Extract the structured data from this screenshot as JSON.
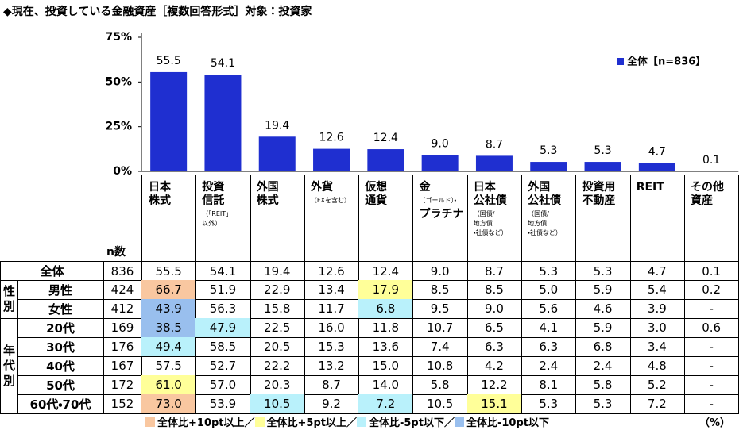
{
  "chart_data": {
    "type": "bar",
    "title": "◆現在、投資している金融資産［複数回答形式］対象：投資家",
    "categories": [
      "日本\n株式",
      "投資\n信託",
      "外国\n株式",
      "外貨",
      "仮想\n通貨",
      "金",
      "日本\n公社債",
      "外国\n公社債",
      "投資用\n不動産",
      "REIT",
      "その他\n資産"
    ],
    "category_notes": [
      null,
      "（「REIT」\n以外）",
      null,
      "（FXを含む）",
      null,
      "（ゴールド）・",
      "（国債/\n地方債\n・社債など）",
      "（国債/\n地方債\n・社債など）",
      null,
      null,
      null
    ],
    "category_tails": [
      null,
      null,
      null,
      null,
      null,
      "プラチナ",
      null,
      null,
      null,
      null,
      null
    ],
    "series": [
      {
        "name": "全体【n=836】",
        "color": "#1f2fd0",
        "values": [
          55.5,
          54.1,
          19.4,
          12.6,
          12.4,
          9.0,
          8.7,
          5.3,
          5.3,
          4.7,
          0.1
        ],
        "value_labels": [
          "55.5",
          "54.1",
          "19.4",
          "12.6",
          "12.4",
          "9.0",
          "8.7",
          "5.3",
          "5.3",
          "4.7",
          "0.1"
        ]
      }
    ],
    "ylim": [
      0,
      75
    ],
    "yticks": [
      {
        "value": 0,
        "label": "0%"
      },
      {
        "value": 25,
        "label": "25%"
      },
      {
        "value": 50,
        "label": "50%"
      },
      {
        "value": 75,
        "label": "75%"
      }
    ],
    "grid": false,
    "legend": "upper right"
  },
  "table": {
    "n_header": "n数",
    "sections": [
      {
        "group": null,
        "rows": [
          {
            "label": "全体",
            "n": 836,
            "cells": [
              "55.5",
              "54.1",
              "19.4",
              "12.6",
              "12.4",
              "9.0",
              "8.7",
              "5.3",
              "5.3",
              "4.7",
              "0.1"
            ],
            "highlights": [
              null,
              null,
              null,
              null,
              null,
              null,
              null,
              null,
              null,
              null,
              null
            ]
          }
        ]
      },
      {
        "group": "性\n別",
        "rows": [
          {
            "label": "男性",
            "n": 424,
            "cells": [
              "66.7",
              "51.9",
              "22.9",
              "13.4",
              "17.9",
              "8.5",
              "8.5",
              "5.0",
              "5.9",
              "5.4",
              "0.2"
            ],
            "highlights": [
              "#f9c7a0",
              null,
              null,
              null,
              "#ffff99",
              null,
              null,
              null,
              null,
              null,
              null
            ]
          },
          {
            "label": "女性",
            "n": 412,
            "cells": [
              "43.9",
              "56.3",
              "15.8",
              "11.7",
              "6.8",
              "9.5",
              "9.0",
              "5.6",
              "4.6",
              "3.9",
              "-"
            ],
            "highlights": [
              "#99bfee",
              null,
              null,
              null,
              "#b9f1fb",
              null,
              null,
              null,
              null,
              null,
              null
            ]
          }
        ]
      },
      {
        "group": "年\n代\n別",
        "rows": [
          {
            "label": "20代",
            "n": 169,
            "cells": [
              "38.5",
              "47.9",
              "22.5",
              "16.0",
              "11.8",
              "10.7",
              "6.5",
              "4.1",
              "5.9",
              "3.0",
              "0.6"
            ],
            "highlights": [
              "#99bfee",
              "#b9f1fb",
              null,
              null,
              null,
              null,
              null,
              null,
              null,
              null,
              null
            ]
          },
          {
            "label": "30代",
            "n": 176,
            "cells": [
              "49.4",
              "58.5",
              "20.5",
              "15.3",
              "13.6",
              "7.4",
              "6.3",
              "6.3",
              "6.8",
              "3.4",
              "-"
            ],
            "highlights": [
              "#b9f1fb",
              null,
              null,
              null,
              null,
              null,
              null,
              null,
              null,
              null,
              null
            ]
          },
          {
            "label": "40代",
            "n": 167,
            "cells": [
              "57.5",
              "52.7",
              "22.2",
              "13.2",
              "15.0",
              "10.8",
              "4.2",
              "2.4",
              "2.4",
              "4.8",
              "-"
            ],
            "highlights": [
              null,
              null,
              null,
              null,
              null,
              null,
              null,
              null,
              null,
              null,
              null
            ]
          },
          {
            "label": "50代",
            "n": 172,
            "cells": [
              "61.0",
              "57.0",
              "20.3",
              "8.7",
              "14.0",
              "5.8",
              "12.2",
              "8.1",
              "5.8",
              "5.2",
              "-"
            ],
            "highlights": [
              "#ffff99",
              null,
              null,
              null,
              null,
              null,
              null,
              null,
              null,
              null,
              null
            ]
          },
          {
            "label": "60代・70代",
            "n": 152,
            "cells": [
              "73.0",
              "53.9",
              "10.5",
              "9.2",
              "7.2",
              "10.5",
              "15.1",
              "5.3",
              "5.3",
              "7.2",
              "-"
            ],
            "highlights": [
              "#f9c7a0",
              null,
              "#b9f1fb",
              null,
              "#b9f1fb",
              null,
              "#ffff99",
              null,
              null,
              null,
              null
            ]
          }
        ]
      }
    ],
    "highlight_legend": [
      {
        "label": "全体比+10pt以上／",
        "color": "#f9c7a0"
      },
      {
        "label": "全体比+5pt以上／",
        "color": "#ffff99"
      },
      {
        "label": "全体比-5pt以下／",
        "color": "#b9f1fb"
      },
      {
        "label": "全体比-10pt以下",
        "color": "#99bfee"
      }
    ],
    "unit": "（%）"
  }
}
